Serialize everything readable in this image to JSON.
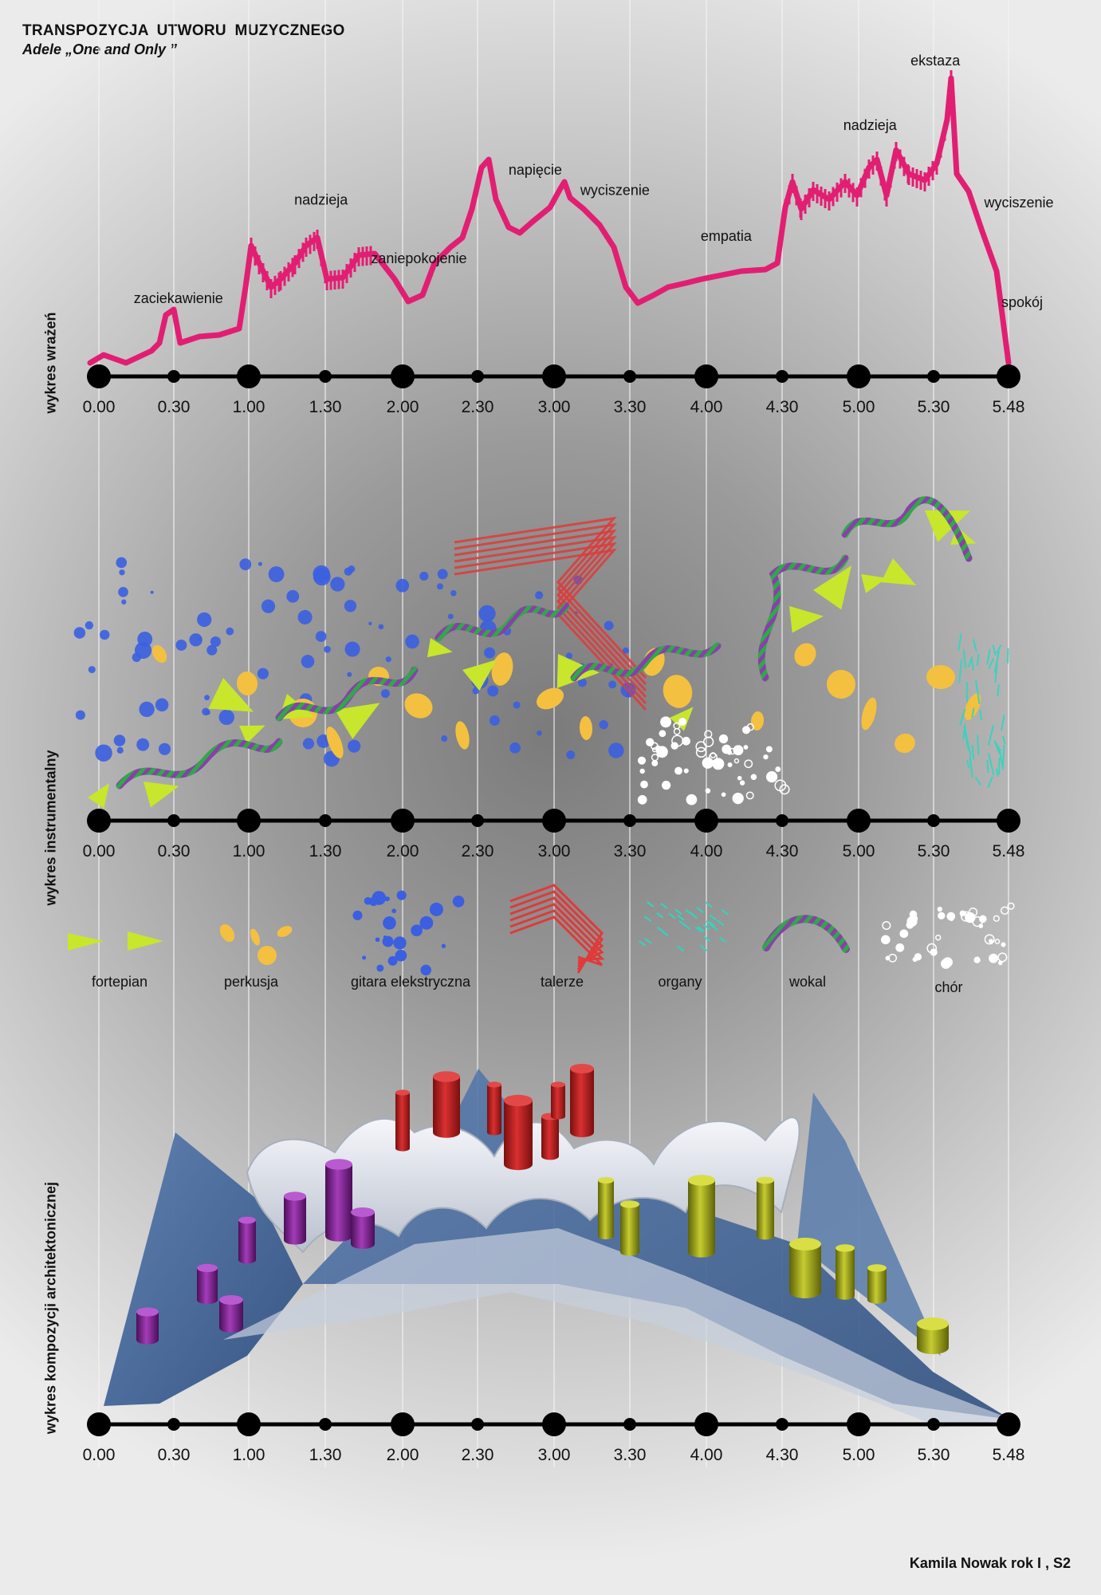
{
  "title": "TRANSPOZYCJA  UTWORU  MUZYCZNEGO",
  "subtitle": "Adele  „One and Only ”",
  "author": "Kamila Nowak rok I , S2",
  "section_labels": {
    "emotions": "wykres wrażeń",
    "instruments": "wykres instrumentalny",
    "architecture": "wykres kompozycji architektonicznej"
  },
  "timeline": [
    "0.00",
    "0.30",
    "1.00",
    "1.30",
    "2.00",
    "2.30",
    "3.00",
    "3.30",
    "4.00",
    "4.30",
    "5.00",
    "5.30",
    "5.48"
  ],
  "emotion_labels": [
    {
      "t": "0.35",
      "text": "zaciekawienie"
    },
    {
      "t": "1.25",
      "text": "nadzieja"
    },
    {
      "t": "2.00",
      "text": "zaniepokojenie"
    },
    {
      "t": "2.50",
      "text": "napięcie"
    },
    {
      "t": "3.15",
      "text": "wyciszenie"
    },
    {
      "t": "4.00",
      "text": "empatia"
    },
    {
      "t": "4.55",
      "text": "nadzieja"
    },
    {
      "t": "5.20",
      "text": "ekstaza"
    },
    {
      "t": "5.45",
      "text": "wyciszenie"
    },
    {
      "t": "5.48",
      "text": "spokój"
    }
  ],
  "legend": [
    {
      "key": "piano",
      "label": "fortepian",
      "color": "#c8e62c"
    },
    {
      "key": "percussion",
      "label": "perkusja",
      "color": "#f4c040"
    },
    {
      "key": "guitar",
      "label": "gitara elekstryczna",
      "color": "#3b5fe0"
    },
    {
      "key": "cymbals",
      "label": "talerze",
      "color": "#e03a3a"
    },
    {
      "key": "organ",
      "label": "organy",
      "color": "#2fd6c0"
    },
    {
      "key": "vocal",
      "label": "wokal",
      "color": "#8a3fa8"
    },
    {
      "key": "choir",
      "label": "chór",
      "color": "#ffffff"
    }
  ],
  "colors": {
    "emotion_line": "#e21e72",
    "timeline": "#000000",
    "guide_lines": "#f4f4f4",
    "architecture_base": "#4a6ea0",
    "architecture_walls": "#dfe3ec",
    "architecture_red": "#b11e1e",
    "architecture_purple": "#7a1f8c",
    "architecture_olive": "#9aa01a"
  }
}
